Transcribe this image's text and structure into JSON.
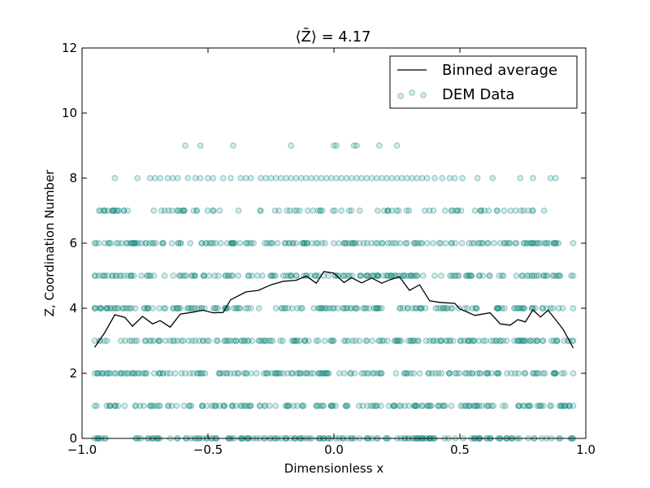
{
  "chart_data": {
    "type": "scatter",
    "title": "⟨Z̄⟩ = 4.17",
    "xlabel": "Dimensionless x",
    "ylabel": "Z, Coordination Number",
    "xlim": [
      -1.0,
      1.0
    ],
    "ylim": [
      0,
      12
    ],
    "xticks": [
      "−1.0",
      "−0.5",
      "0.0",
      "0.5",
      "1.0"
    ],
    "yticks": [
      "0",
      "2",
      "4",
      "6",
      "8",
      "10",
      "12"
    ],
    "grid": false,
    "legend_position": "top-right",
    "series": [
      {
        "name": "Binned average",
        "kind": "line",
        "color": "#000000",
        "x": [
          -0.95,
          -0.91,
          -0.87,
          -0.83,
          -0.8,
          -0.76,
          -0.72,
          -0.69,
          -0.65,
          -0.61,
          -0.56,
          -0.52,
          -0.48,
          -0.44,
          -0.41,
          -0.35,
          -0.3,
          -0.25,
          -0.2,
          -0.15,
          -0.11,
          -0.07,
          -0.04,
          0.0,
          0.04,
          0.07,
          0.11,
          0.15,
          0.19,
          0.22,
          0.26,
          0.3,
          0.34,
          0.38,
          0.42,
          0.48,
          0.5,
          0.56,
          0.62,
          0.66,
          0.7,
          0.73,
          0.76,
          0.79,
          0.82,
          0.85,
          0.88,
          0.91,
          0.95
        ],
        "y": [
          2.8,
          3.25,
          3.8,
          3.72,
          3.45,
          3.75,
          3.52,
          3.62,
          3.42,
          3.82,
          3.88,
          3.94,
          3.86,
          3.87,
          4.26,
          4.5,
          4.55,
          4.72,
          4.83,
          4.86,
          4.99,
          4.77,
          5.13,
          5.08,
          4.79,
          4.94,
          4.78,
          4.93,
          4.77,
          4.87,
          4.97,
          4.55,
          4.72,
          4.23,
          4.18,
          4.15,
          3.98,
          3.78,
          3.86,
          3.52,
          3.48,
          3.65,
          3.58,
          3.95,
          3.73,
          3.94,
          3.65,
          3.35,
          2.78
        ]
      },
      {
        "name": "DEM Data",
        "kind": "scatter",
        "color": "#2aa8a0",
        "dense_levels": [
          0,
          1,
          2,
          3,
          4,
          5,
          6
        ],
        "level_ranges": {
          "0": [
            -0.95,
            0.95
          ],
          "1": [
            -0.95,
            0.95
          ],
          "2": [
            -0.95,
            0.95
          ],
          "3": [
            -0.95,
            0.95
          ],
          "4": [
            -0.95,
            0.95
          ],
          "5": [
            -0.95,
            0.95
          ],
          "6": [
            -0.95,
            0.95
          ],
          "7": [
            -0.94,
            0.89
          ]
        },
        "sparse_points": [
          {
            "x": -0.87,
            "y": 8
          },
          {
            "x": -0.78,
            "y": 8
          },
          {
            "x": -0.73,
            "y": 8
          },
          {
            "x": -0.71,
            "y": 8
          },
          {
            "x": -0.69,
            "y": 8
          },
          {
            "x": -0.66,
            "y": 8
          },
          {
            "x": -0.64,
            "y": 8
          },
          {
            "x": -0.62,
            "y": 8
          },
          {
            "x": -0.58,
            "y": 8
          },
          {
            "x": -0.55,
            "y": 8
          },
          {
            "x": -0.53,
            "y": 8
          },
          {
            "x": -0.5,
            "y": 8
          },
          {
            "x": -0.48,
            "y": 8
          },
          {
            "x": -0.44,
            "y": 8
          },
          {
            "x": -0.41,
            "y": 8
          },
          {
            "x": -0.37,
            "y": 8
          },
          {
            "x": -0.35,
            "y": 8
          },
          {
            "x": -0.33,
            "y": 8
          },
          {
            "x": -0.29,
            "y": 8
          },
          {
            "x": -0.27,
            "y": 8
          },
          {
            "x": -0.25,
            "y": 8
          },
          {
            "x": -0.23,
            "y": 8
          },
          {
            "x": -0.21,
            "y": 8
          },
          {
            "x": -0.19,
            "y": 8
          },
          {
            "x": -0.17,
            "y": 8
          },
          {
            "x": -0.15,
            "y": 8
          },
          {
            "x": -0.13,
            "y": 8
          },
          {
            "x": -0.11,
            "y": 8
          },
          {
            "x": -0.09,
            "y": 8
          },
          {
            "x": -0.07,
            "y": 8
          },
          {
            "x": -0.05,
            "y": 8
          },
          {
            "x": -0.03,
            "y": 8
          },
          {
            "x": -0.01,
            "y": 8
          },
          {
            "x": 0.01,
            "y": 8
          },
          {
            "x": 0.03,
            "y": 8
          },
          {
            "x": 0.05,
            "y": 8
          },
          {
            "x": 0.07,
            "y": 8
          },
          {
            "x": 0.09,
            "y": 8
          },
          {
            "x": 0.11,
            "y": 8
          },
          {
            "x": 0.13,
            "y": 8
          },
          {
            "x": 0.15,
            "y": 8
          },
          {
            "x": 0.17,
            "y": 8
          },
          {
            "x": 0.19,
            "y": 8
          },
          {
            "x": 0.21,
            "y": 8
          },
          {
            "x": 0.23,
            "y": 8
          },
          {
            "x": 0.25,
            "y": 8
          },
          {
            "x": 0.27,
            "y": 8
          },
          {
            "x": 0.29,
            "y": 8
          },
          {
            "x": 0.31,
            "y": 8
          },
          {
            "x": 0.33,
            "y": 8
          },
          {
            "x": 0.35,
            "y": 8
          },
          {
            "x": 0.37,
            "y": 8
          },
          {
            "x": 0.4,
            "y": 8
          },
          {
            "x": 0.43,
            "y": 8
          },
          {
            "x": 0.46,
            "y": 8
          },
          {
            "x": 0.48,
            "y": 8
          },
          {
            "x": 0.51,
            "y": 8
          },
          {
            "x": 0.57,
            "y": 8
          },
          {
            "x": 0.63,
            "y": 8
          },
          {
            "x": 0.74,
            "y": 8
          },
          {
            "x": 0.79,
            "y": 8
          },
          {
            "x": 0.86,
            "y": 8
          },
          {
            "x": 0.88,
            "y": 8
          },
          {
            "x": -0.59,
            "y": 9
          },
          {
            "x": -0.53,
            "y": 9
          },
          {
            "x": -0.4,
            "y": 9
          },
          {
            "x": -0.17,
            "y": 9
          },
          {
            "x": 0.0,
            "y": 9
          },
          {
            "x": 0.01,
            "y": 9
          },
          {
            "x": 0.08,
            "y": 9
          },
          {
            "x": 0.09,
            "y": 9
          },
          {
            "x": 0.18,
            "y": 9
          },
          {
            "x": 0.25,
            "y": 9
          }
        ]
      }
    ]
  }
}
